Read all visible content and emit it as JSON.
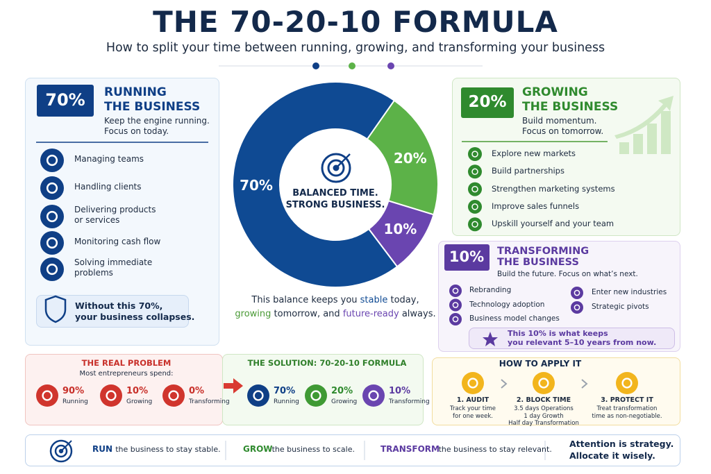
{
  "header": {
    "title": "THE 70-20-10 FORMULA",
    "subtitle": "How to split your time between running, growing, and transforming your business"
  },
  "donut": {
    "segments": [
      {
        "label": "70%",
        "value": 70,
        "color": "#0f4a93"
      },
      {
        "label": "20%",
        "value": 20,
        "color": "#5cb248"
      },
      {
        "label": "10%",
        "value": 10,
        "color": "#6a45b0"
      }
    ],
    "center": [
      "BALANCED TIME.",
      "STRONG BUSINESS."
    ],
    "caption": [
      [
        {
          "text": "This balance keeps you ",
          "color": "#1c2a3f"
        },
        {
          "text": "stable",
          "color": "#0f4a93"
        },
        {
          "text": " today,",
          "color": "#1c2a3f"
        }
      ],
      [
        {
          "text": "growing",
          "color": "#4a9a36"
        },
        {
          "text": " tomorrow, and ",
          "color": "#1c2a3f"
        },
        {
          "text": "future-ready",
          "color": "#6a45b0"
        },
        {
          "text": " always.",
          "color": "#1c2a3f"
        }
      ]
    ]
  },
  "running": {
    "badge": "70%",
    "title": [
      "RUNNING",
      "THE BUSINESS"
    ],
    "description": [
      "Keep the engine running.",
      "Focus on today."
    ],
    "items": [
      [
        "Managing teams"
      ],
      [
        "Handling clients"
      ],
      [
        "Delivering products",
        "or services"
      ],
      [
        "Monitoring cash flow"
      ],
      [
        "Solving immediate",
        "problems"
      ]
    ],
    "warning": [
      "Without this 70%,",
      "your business collapses."
    ]
  },
  "growing": {
    "badge": "20%",
    "title": [
      "GROWING",
      "THE BUSINESS"
    ],
    "description": [
      "Build momentum.",
      "Focus on tomorrow."
    ],
    "items": [
      "Explore new markets",
      "Build partnerships",
      "Strengthen marketing systems",
      "Improve sales funnels",
      "Upskill yourself and your team"
    ]
  },
  "transforming": {
    "badge": "10%",
    "title": [
      "TRANSFORMING",
      "THE BUSINESS"
    ],
    "description": "Build the future. Focus on what’s next.",
    "items_left": [
      "Rebranding",
      "Technology adoption",
      "Business model changes"
    ],
    "items_right": [
      "Enter new industries",
      "Strategic pivots"
    ],
    "note": [
      "This 10% is what keeps",
      "you relevant 5–10 years from now."
    ]
  },
  "problem": {
    "title": "THE REAL PROBLEM",
    "subtitle": "Most entrepreneurs spend:",
    "stats": [
      {
        "value": "90%",
        "label": "Running"
      },
      {
        "value": "10%",
        "label": "Growing"
      },
      {
        "value": "0%",
        "label": "Transforming"
      }
    ]
  },
  "solution": {
    "title": "THE SOLUTION: 70-20-10 FORMULA",
    "stats": [
      {
        "value": "70%",
        "label": "Running"
      },
      {
        "value": "20%",
        "label": "Growing"
      },
      {
        "value": "10%",
        "label": "Transforming"
      }
    ]
  },
  "apply": {
    "title": "HOW TO APPLY IT",
    "steps": [
      {
        "title": "1. AUDIT",
        "lines": [
          "Track your time",
          "for one week."
        ]
      },
      {
        "title": "2. BLOCK TIME",
        "lines": [
          "3.5 days Operations",
          "1 day Growth",
          "Half day Transformation"
        ]
      },
      {
        "title": "3. PROTECT IT",
        "lines": [
          "Treat transformation",
          "time as non-negotiable."
        ]
      }
    ]
  },
  "footer": {
    "items": [
      {
        "key": "RUN",
        "text": "the business to stay stable."
      },
      {
        "key": "GROW",
        "text": "the business to scale."
      },
      {
        "key": "TRANSFORM",
        "text": "the business to stay relevant."
      }
    ],
    "closing": [
      "Attention is strategy.",
      "Allocate it wisely."
    ]
  }
}
